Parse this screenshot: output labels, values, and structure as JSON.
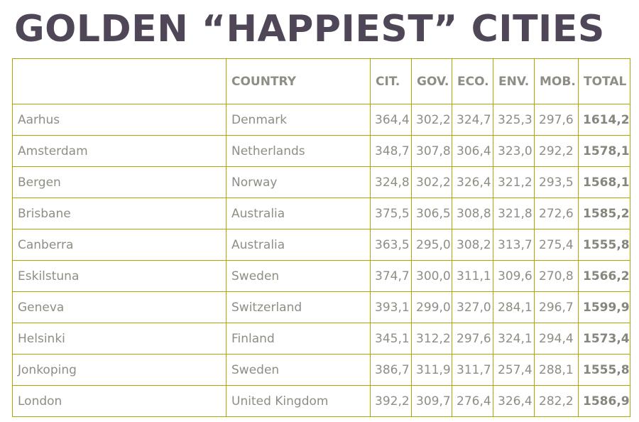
{
  "title": "GOLDEN “HAPPIEST” CITIES",
  "table": {
    "headers": [
      "",
      "COUNTRY",
      "CIT.",
      "GOV.",
      "ECO.",
      "ENV.",
      "MOB.",
      "TOTAL"
    ],
    "rows": [
      [
        "Aarhus",
        "Denmark",
        "364,4",
        "302,2",
        "324,7",
        "325,3",
        "297,6",
        "1614,2"
      ],
      [
        "Amsterdam",
        "Netherlands",
        "348,7",
        "307,8",
        "306,4",
        "323,0",
        "292,2",
        "1578,1"
      ],
      [
        "Bergen",
        "Norway",
        "324,8",
        "302,2",
        "326,4",
        "321,2",
        "293,5",
        "1568,1"
      ],
      [
        "Brisbane",
        "Australia",
        "375,5",
        "306,5",
        "308,8",
        "321,8",
        "272,6",
        "1585,2"
      ],
      [
        "Canberra",
        "Australia",
        "363,5",
        "295,0",
        "308,2",
        "313,7",
        "275,4",
        "1555,8"
      ],
      [
        "Eskilstuna",
        "Sweden",
        "374,7",
        "300,0",
        "311,1",
        "309,6",
        "270,8",
        "1566,2"
      ],
      [
        "Geneva",
        "Switzerland",
        "393,1",
        "299,0",
        "327,0",
        "284,1",
        "296,7",
        "1599,9"
      ],
      [
        "Helsinki",
        "Finland",
        "345,1",
        "312,2",
        "297,6",
        "324,1",
        "294,4",
        "1573,4"
      ],
      [
        "Jonkoping",
        "Sweden",
        "386,7",
        "311,9",
        "311,7",
        "257,4",
        "288,1",
        "1555,8"
      ],
      [
        "London",
        "United Kingdom",
        "392,2",
        "309,7",
        "276,4",
        "326,4",
        "282,2",
        "1586,9"
      ]
    ]
  },
  "colors": {
    "title": "#4f4757",
    "text": "#8e8e84",
    "grid": "#a8a800"
  }
}
